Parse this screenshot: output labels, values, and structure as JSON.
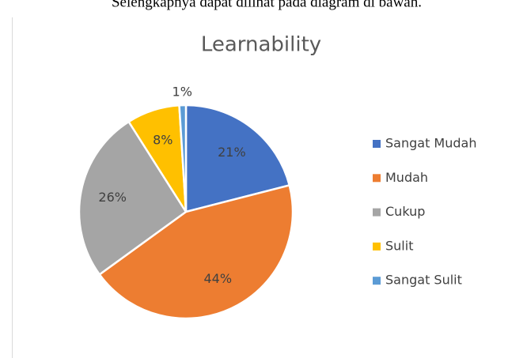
{
  "caption": "Selengkapnya dapat dilihat pada diagram di bawah.",
  "chart_data": {
    "type": "pie",
    "title": "Learnability",
    "categories": [
      "Sangat Mudah",
      "Mudah",
      "Cukup",
      "Sulit",
      "Sangat Sulit"
    ],
    "values": [
      21,
      44,
      26,
      8,
      1
    ],
    "value_labels": [
      "21%",
      "44%",
      "26%",
      "8%",
      "1%"
    ],
    "colors": [
      "#4472c4",
      "#ed7d31",
      "#a5a5a5",
      "#ffc000",
      "#5b9bd5"
    ],
    "legend": "right"
  }
}
